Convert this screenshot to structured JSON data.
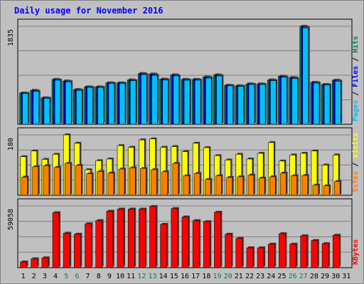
{
  "chart_data": {
    "type": "bar",
    "title": "Daily usage for November 2016",
    "colors": {
      "hits": "#00805c",
      "files": "#0000ff",
      "pages": "#00c0ff",
      "visits": "#ffff00",
      "sites": "#ff8000",
      "kbytes": "#ff0000",
      "weekend": "#00805c",
      "title": "#0000ff",
      "plot_bg": "#c0c0c0",
      "grid": "#808080"
    },
    "categories": [
      "1",
      "2",
      "3",
      "4",
      "5",
      "6",
      "7",
      "8",
      "9",
      "10",
      "11",
      "12",
      "13",
      "14",
      "15",
      "16",
      "17",
      "18",
      "19",
      "20",
      "21",
      "22",
      "23",
      "24",
      "25",
      "26",
      "27",
      "28",
      "29",
      "30",
      "31"
    ],
    "weekend_days": [
      "5",
      "6",
      "12",
      "13",
      "19",
      "20",
      "26",
      "27"
    ],
    "panels": [
      {
        "id": "hits-files-pages",
        "ymax": 1835,
        "ymax_label": "1835",
        "legend": [
          {
            "key": "pages",
            "label": "Pages"
          },
          {
            "key": "sep1",
            "label": " / "
          },
          {
            "key": "files",
            "label": "Files"
          },
          {
            "key": "sep2",
            "label": " / "
          },
          {
            "key": "hits",
            "label": "Hits"
          }
        ],
        "series": [
          {
            "key": "hits",
            "values": [
              585,
              635,
              495,
              840,
              810,
              650,
              700,
              700,
              775,
              775,
              830,
              950,
              940,
              845,
              925,
              840,
              840,
              885,
              925,
              730,
              720,
              755,
              755,
              830,
              900,
              875,
              1835,
              785,
              745,
              825,
              0
            ]
          },
          {
            "key": "files",
            "values": [
              580,
              630,
              490,
              835,
              805,
              645,
              695,
              695,
              770,
              770,
              825,
              945,
              935,
              840,
              920,
              835,
              835,
              880,
              920,
              725,
              715,
              750,
              750,
              825,
              895,
              870,
              1825,
              780,
              740,
              820,
              0
            ]
          },
          {
            "key": "pages",
            "values": [
              575,
              615,
              485,
              825,
              795,
              635,
              690,
              690,
              765,
              765,
              815,
              930,
              915,
              830,
              905,
              825,
              825,
              865,
              905,
              720,
              710,
              745,
              745,
              815,
              880,
              855,
              1805,
              770,
              735,
              805,
              0
            ]
          }
        ]
      },
      {
        "id": "visits-sites",
        "ymax": 180,
        "ymax_label": "180",
        "legend": [
          {
            "key": "sites",
            "label": "Sites"
          },
          {
            "key": "sep1",
            "label": " / "
          },
          {
            "key": "visits",
            "label": "Visits"
          }
        ],
        "series": [
          {
            "key": "visits",
            "values": [
              115,
              132,
              107,
              122,
              180,
              155,
              76,
              103,
              108,
              148,
              143,
              165,
              168,
              143,
              145,
              130,
              155,
              142,
              118,
              105,
              122,
              108,
              125,
              157,
              102,
              120,
              125,
              132,
              90,
              120,
              0
            ]
          },
          {
            "key": "sites",
            "values": [
              54,
              85,
              88,
              83,
              95,
              89,
              64,
              71,
              66,
              78,
              82,
              80,
              76,
              70,
              95,
              58,
              65,
              47,
              58,
              53,
              55,
              60,
              51,
              55,
              66,
              58,
              59,
              30,
              28,
              41,
              0
            ]
          }
        ]
      },
      {
        "id": "kbytes",
        "ymax": 59058,
        "ymax_label": "59058",
        "legend": [
          {
            "key": "kbytes",
            "label": "KBytes"
          }
        ],
        "series": [
          {
            "key": "kbytes",
            "values": [
              5500,
              8500,
              9400,
              52500,
              33000,
              32000,
              42000,
              45000,
              54000,
              56000,
              56000,
              56000,
              58500,
              41500,
              56500,
              48500,
              45000,
              44000,
              53000,
              32000,
              28000,
              19000,
              19000,
              22500,
              32500,
              22500,
              30500,
              26000,
              23000,
              31000,
              0
            ]
          }
        ]
      }
    ]
  }
}
